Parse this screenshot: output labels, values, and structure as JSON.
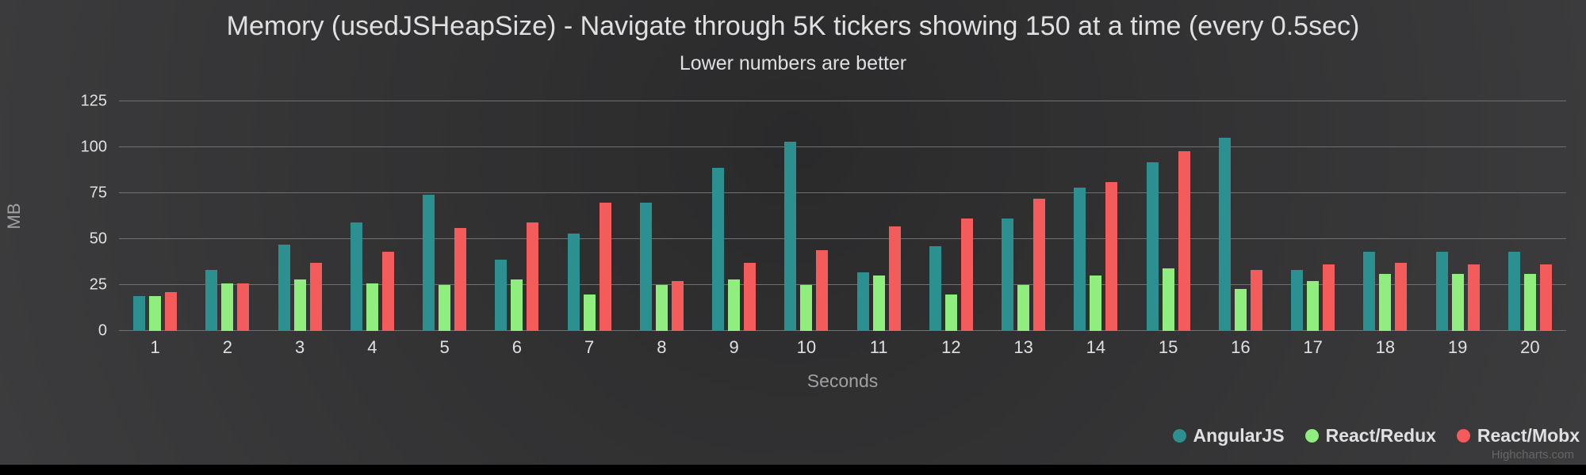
{
  "chart": {
    "title": "Memory (usedJSHeapSize) - Navigate through 5K tickers showing 150 at a time (every 0.5sec)",
    "subtitle": "Lower numbers are better",
    "credits": "Highcharts.com"
  },
  "colors": {
    "background_top": "#2a2a2b",
    "background_bottom": "#3e3e40",
    "gridline": "#707073",
    "text": "#E0E0E3",
    "axis_title": "#A0A0A3",
    "credits": "#666666"
  },
  "chart_data": {
    "type": "bar",
    "title": "Memory (usedJSHeapSize) - Navigate through 5K tickers showing 150 at a time (every 0.5sec)",
    "subtitle": "Lower numbers are better",
    "xlabel": "Seconds",
    "ylabel": "MB",
    "ylim": [
      0,
      125
    ],
    "yticks": [
      0,
      25,
      50,
      75,
      100,
      125
    ],
    "grid": true,
    "legend_position": "bottom-right",
    "categories": [
      "1",
      "2",
      "3",
      "4",
      "5",
      "6",
      "7",
      "8",
      "9",
      "10",
      "11",
      "12",
      "13",
      "14",
      "15",
      "16",
      "17",
      "18",
      "19",
      "20"
    ],
    "series": [
      {
        "name": "AngularJS",
        "color": "#2b908f",
        "values": [
          19,
          33,
          47,
          59,
          74,
          39,
          53,
          70,
          89,
          103,
          32,
          46,
          61,
          78,
          92,
          105,
          33,
          43,
          43,
          43
        ]
      },
      {
        "name": "React/Redux",
        "color": "#90ee7e",
        "values": [
          19,
          26,
          28,
          26,
          25,
          28,
          20,
          25,
          28,
          25,
          30,
          20,
          25,
          30,
          34,
          23,
          27,
          31,
          31,
          31
        ]
      },
      {
        "name": "React/Mobx",
        "color": "#f45b5b",
        "values": [
          21,
          26,
          37,
          43,
          56,
          59,
          70,
          27,
          37,
          44,
          57,
          61,
          72,
          81,
          98,
          33,
          36,
          37,
          36,
          36
        ]
      }
    ]
  }
}
